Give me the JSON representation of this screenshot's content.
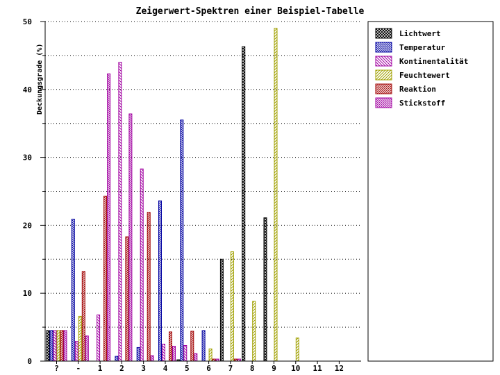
{
  "chart_data": {
    "type": "bar",
    "title": "Zeigerwert-Spektren einer Beispiel-Tabelle",
    "ylabel": "Deckungsgrade (%)",
    "xlabel": "",
    "ylim": [
      0,
      50
    ],
    "yticks": [
      0,
      10,
      20,
      30,
      40,
      50
    ],
    "grid": true,
    "legend_position": "right",
    "categories": [
      "?",
      "-",
      "1",
      "2",
      "3",
      "4",
      "5",
      "6",
      "7",
      "8",
      "9",
      "10",
      "11",
      "12"
    ],
    "series": [
      {
        "name": "Lichtwert",
        "color": "#000000",
        "pattern": "cross",
        "values": [
          4.5,
          0,
          0,
          0,
          0,
          0,
          0.2,
          0,
          15.0,
          46.3,
          21.1,
          0,
          0,
          0
        ]
      },
      {
        "name": "Temperatur",
        "color": "#0000a0",
        "pattern": "back-dense",
        "values": [
          4.5,
          20.9,
          0,
          0.7,
          2.0,
          23.6,
          35.5,
          4.5,
          0,
          0,
          0,
          0,
          0,
          0
        ]
      },
      {
        "name": "Kontinentalität",
        "color": "#a000a0",
        "pattern": "back",
        "values": [
          4.5,
          2.9,
          6.8,
          44.0,
          28.3,
          2.5,
          2.3,
          0,
          0,
          0,
          0,
          0,
          0,
          0
        ]
      },
      {
        "name": "Feuchtewert",
        "color": "#a0a000",
        "pattern": "fwd",
        "values": [
          4.5,
          6.6,
          0,
          0,
          0,
          0,
          0,
          1.8,
          16.1,
          8.8,
          49.0,
          3.4,
          0,
          0
        ]
      },
      {
        "name": "Reaktion",
        "color": "#a00000",
        "pattern": "fwd-dense",
        "values": [
          4.5,
          13.2,
          24.3,
          18.3,
          21.9,
          4.3,
          4.4,
          0.3,
          0.3,
          0,
          0,
          0,
          0,
          0
        ]
      },
      {
        "name": "Stickstoff",
        "color": "#a000a0",
        "pattern": "back-dense",
        "values": [
          4.5,
          3.7,
          42.3,
          36.4,
          0.8,
          2.2,
          1.1,
          0.3,
          0.3,
          0,
          0,
          0,
          0,
          0
        ]
      }
    ]
  }
}
